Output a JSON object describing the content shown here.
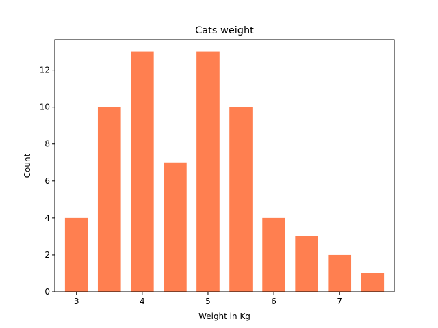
{
  "chart_data": {
    "type": "bar",
    "title": "Cats weight",
    "xlabel": "Weight in Kg",
    "ylabel": "Count",
    "bar_color": "#FF7F50",
    "xlim": [
      2.67,
      7.83
    ],
    "ylim": [
      0,
      13.65
    ],
    "xticks": [
      3,
      4,
      5,
      6,
      7
    ],
    "yticks": [
      0,
      2,
      4,
      6,
      8,
      10,
      12
    ],
    "bar_width": 0.35,
    "bars": [
      {
        "x": 3.0,
        "value": 4
      },
      {
        "x": 3.5,
        "value": 10
      },
      {
        "x": 4.0,
        "value": 13
      },
      {
        "x": 4.5,
        "value": 7
      },
      {
        "x": 5.0,
        "value": 13
      },
      {
        "x": 5.5,
        "value": 10
      },
      {
        "x": 6.0,
        "value": 4
      },
      {
        "x": 6.5,
        "value": 3
      },
      {
        "x": 7.0,
        "value": 2
      },
      {
        "x": 7.5,
        "value": 1
      }
    ],
    "grid": false,
    "legend": "none"
  }
}
